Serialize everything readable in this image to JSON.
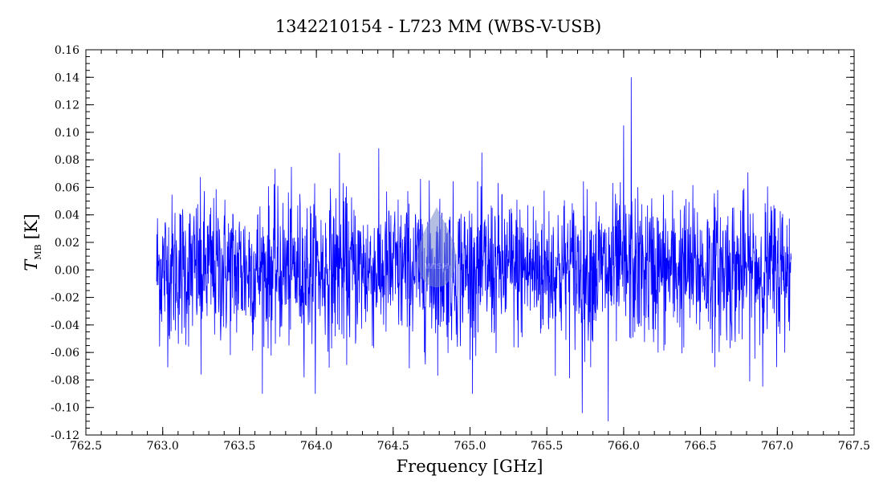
{
  "chart_data": {
    "type": "line",
    "title": "1342210154 - L723 MM (WBS-V-USB)",
    "xlabel": "Frequency [GHz]",
    "ylabel_symbol": "T",
    "ylabel_subscript": "MB",
    "ylabel_unit": "[K]",
    "xlim": [
      762.5,
      767.5
    ],
    "ylim": [
      -0.12,
      0.16
    ],
    "x_ticks": [
      "762.5",
      "763.0",
      "763.5",
      "764.0",
      "764.5",
      "765.0",
      "765.5",
      "766.0",
      "766.5",
      "767.0",
      "767.5"
    ],
    "y_ticks": [
      "0.16",
      "0.14",
      "0.12",
      "0.10",
      "0.08",
      "0.06",
      "0.04",
      "0.02",
      "0.00",
      "-0.02",
      "-0.04",
      "-0.06",
      "-0.08",
      "-0.10",
      "-0.12"
    ],
    "series": [
      {
        "color": "#0000ff",
        "x_range": [
          762.96,
          767.09
        ],
        "noise_rms": 0.03,
        "notable_points": [
          {
            "x": 765.9,
            "y": -0.11
          },
          {
            "x": 766.05,
            "y": 0.14
          },
          {
            "x": 766.0,
            "y": 0.105
          },
          {
            "x": 764.15,
            "y": 0.085
          },
          {
            "x": 765.73,
            "y": -0.104
          },
          {
            "x": 763.25,
            "y": -0.076
          }
        ]
      }
    ],
    "grid": false,
    "legend": "none"
  },
  "watermark": {
    "text": "WISH"
  }
}
